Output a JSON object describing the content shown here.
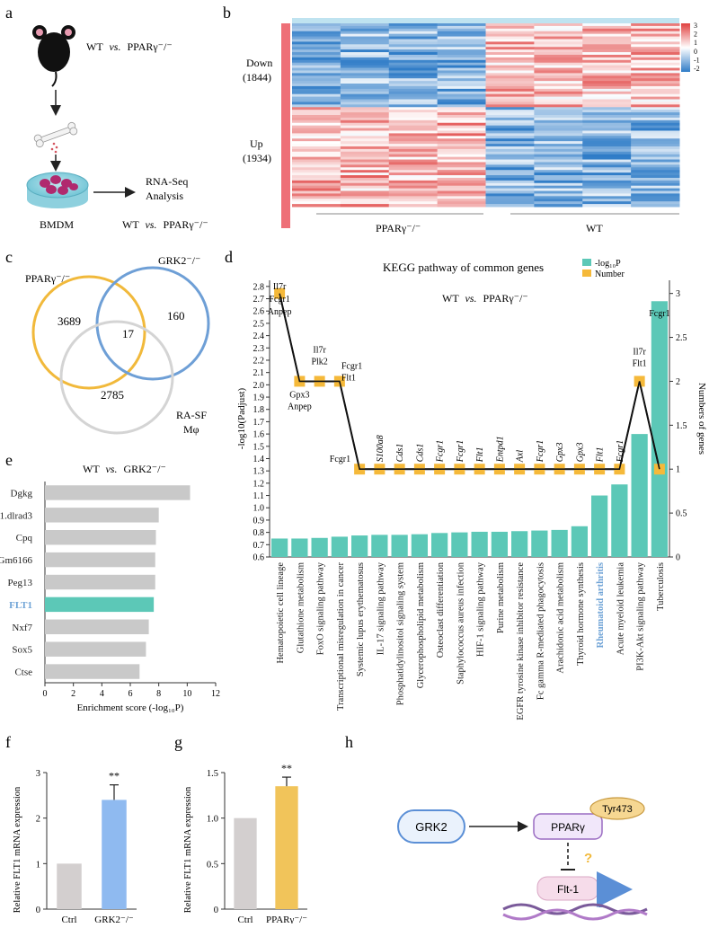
{
  "panels": {
    "a": {
      "letter": "a",
      "comparison": {
        "a": "WT",
        "vs": "vs.",
        "b": "PPARγ⁻/⁻"
      },
      "cell_label": "BMDM",
      "arrow_label_1": "RNA-Seq",
      "arrow_label_2": "Analysis",
      "bottom_comparison": {
        "a": "WT",
        "vs": "vs.",
        "b": "PPARγ⁻/⁻"
      }
    },
    "b": {
      "letter": "b",
      "down_label": "Down",
      "down_count": "(1844)",
      "up_label": "Up",
      "up_count": "(1934)",
      "group_left": "PPARγ⁻/⁻",
      "group_right": "WT",
      "colorbar_ticks": [
        "3",
        "2",
        "1",
        "0",
        "-1",
        "-2"
      ],
      "colors": {
        "high": "#e0403f",
        "mid": "#ffffff",
        "low": "#2f7cc7",
        "side": "#ee6f77"
      }
    },
    "c": {
      "letter": "c",
      "sets": [
        {
          "label": "PPARγ⁻/⁻",
          "color": "#f1b93b"
        },
        {
          "label": "GRK2⁻/⁻",
          "color": "#6e9fd6"
        },
        {
          "label_line1": "RA-SF",
          "label_line2": "Mφ",
          "color": "#d4d4d4"
        }
      ],
      "counts": {
        "ppar_only": "3689",
        "grk2_only": "160",
        "ra_only": "2785",
        "common": "17"
      }
    },
    "d": {
      "letter": "d",
      "title": "KEGG pathway of common genes",
      "subtitle": {
        "a": "WT",
        "vs": "vs.",
        "b": "PPARγ⁻/⁻"
      },
      "legend": [
        {
          "label": "-log₁₀P",
          "color": "#5cc8b7"
        },
        {
          "label": "Number",
          "color": "#f5b93a"
        }
      ],
      "highlight_color": "#6fa3d6"
    },
    "e": {
      "letter": "e",
      "title": {
        "a": "WT",
        "vs": "vs.",
        "b": "GRK2⁻/⁻"
      },
      "highlight_color": "#6fa3d6"
    },
    "f": {
      "letter": "f",
      "significance": "**"
    },
    "g": {
      "letter": "g",
      "significance": "**"
    },
    "h": {
      "letter": "h",
      "nodes": {
        "grk2": "GRK2",
        "ppar": "PPARγ",
        "tyr": "Tyr473",
        "flt": "Flt-1"
      },
      "question": "?",
      "colors": {
        "grk2": "#5b8fd6",
        "ppar": "#b690d8",
        "tyr": "#f4d088",
        "flt": "#f3d1e6",
        "arrow": "#5b8fd6"
      }
    }
  },
  "chart_data": [
    {
      "id": "d",
      "type": "bar",
      "categories": [
        "Hematopoietic cell lineage",
        "Glutathione metabolism",
        "FoxO signaling pathway",
        "Transcriptional misregulation in cancer",
        "Systemic lupus erythematosus",
        "IL-17 signaling pathway",
        "Phosphatidylinositol signaling system",
        "Glycerophospholipid metabolism",
        "Osteoclast differentiation",
        "Staphylococcus aureus infection",
        "HIF-1 signaling pathway",
        "Purine metabolism",
        "EGFR tyrosine kinase inhibitor resistance",
        "Fc gamma R-mediated phagocytosis",
        "Arachidonic acid metabolism",
        "Thyroid hormone synthesis",
        "Rheumatoid arthritis",
        "Acute myeloid leukemia",
        "PI3K-Akt signaling pathway",
        "Tuberculosis"
      ],
      "highlight_category": "Rheumatoid arthritis",
      "series": [
        {
          "name": "-log₁₀P",
          "type": "bar",
          "axis": "left",
          "values": [
            0.75,
            0.75,
            0.755,
            0.765,
            0.775,
            0.78,
            0.78,
            0.785,
            0.795,
            0.8,
            0.805,
            0.805,
            0.81,
            0.815,
            0.82,
            0.85,
            1.1,
            1.19,
            1.6,
            2.68
          ]
        },
        {
          "name": "Number",
          "type": "line",
          "axis": "right",
          "values": [
            3,
            2,
            2,
            2,
            1,
            1,
            1,
            1,
            1,
            1,
            1,
            1,
            1,
            1,
            1,
            1,
            1,
            1,
            2,
            1
          ]
        }
      ],
      "point_labels": [
        [
          "Il7r",
          "Fcgr1",
          "Anpep"
        ],
        [
          "Gpx3",
          "Anpep"
        ],
        [
          "Il7r",
          "Plk2"
        ],
        [
          "Fcgr1",
          "Flt1"
        ],
        [
          "Fcgr1"
        ],
        [
          "S100a8"
        ],
        [
          "Cds1"
        ],
        [
          "Cds1"
        ],
        [
          "Fcgr1"
        ],
        [
          "Fcgr1"
        ],
        [
          "Flt1"
        ],
        [
          "Entpd1"
        ],
        [
          "Axl"
        ],
        [
          "Fcgr1"
        ],
        [
          "Gpx3"
        ],
        [
          "Gpx3"
        ],
        [
          "Flt1"
        ],
        [
          "Fcgr1"
        ],
        [
          "Il7r",
          "Flt1"
        ],
        [
          "Fcgr1"
        ]
      ],
      "ylabel": "-log10(Padjust)",
      "ylim": [
        0.6,
        2.85
      ],
      "yticks": [
        "0.6",
        "0.7",
        "0.8",
        "0.9",
        "1.0",
        "1.1",
        "1.2",
        "1.3",
        "1.4",
        "1.5",
        "1.6",
        "1.7",
        "1.8",
        "1.9",
        "2.0",
        "2.1",
        "2.2",
        "2.3",
        "2.4",
        "2.5",
        "2.6",
        "2.7",
        "2.8"
      ],
      "y2label": "Numbers of genes",
      "y2lim": [
        0,
        3.15
      ],
      "y2ticks": [
        "0",
        "0.5",
        "1",
        "1.5",
        "2",
        "2.5",
        "3"
      ]
    },
    {
      "id": "e",
      "type": "bar",
      "orientation": "horizontal",
      "categories": [
        "Dgkg",
        "1.dlrad3",
        "Cpq",
        "Gm6166",
        "Peg13",
        "FLT1",
        "Nxf7",
        "Sox5",
        "Ctse"
      ],
      "values": [
        10.2,
        8.0,
        7.8,
        7.75,
        7.75,
        7.65,
        7.3,
        7.1,
        6.65
      ],
      "highlight_category": "FLT1",
      "colors": {
        "bar": "#c9c9c9",
        "highlight": "#5cc8b7"
      },
      "xlabel": "Enrichment score (-log₁₀P)",
      "xlim": [
        0,
        12
      ],
      "xticks": [
        "0",
        "2",
        "4",
        "6",
        "8",
        "10",
        "12"
      ]
    },
    {
      "id": "f",
      "type": "bar",
      "categories": [
        "Ctrl",
        "GRK2⁻/⁻"
      ],
      "values": [
        1.0,
        2.4
      ],
      "errors": [
        0,
        0.33
      ],
      "colors": [
        "#d3cfcf",
        "#8fbaf0"
      ],
      "ylabel": "Relative FLT1 mRNA expression",
      "ylim": [
        0,
        3
      ],
      "yticks": [
        "0",
        "1",
        "2",
        "3"
      ]
    },
    {
      "id": "g",
      "type": "bar",
      "categories": [
        "Ctrl",
        "PPARγ⁻/⁻"
      ],
      "values": [
        1.0,
        1.35
      ],
      "errors": [
        0,
        0.1
      ],
      "colors": [
        "#d3cfcf",
        "#f1c45a"
      ],
      "ylabel": "Relative FLT1 mRNA expression",
      "ylim": [
        0,
        1.5
      ],
      "yticks": [
        "0",
        "0.5",
        "1.0",
        "1.5"
      ]
    }
  ]
}
